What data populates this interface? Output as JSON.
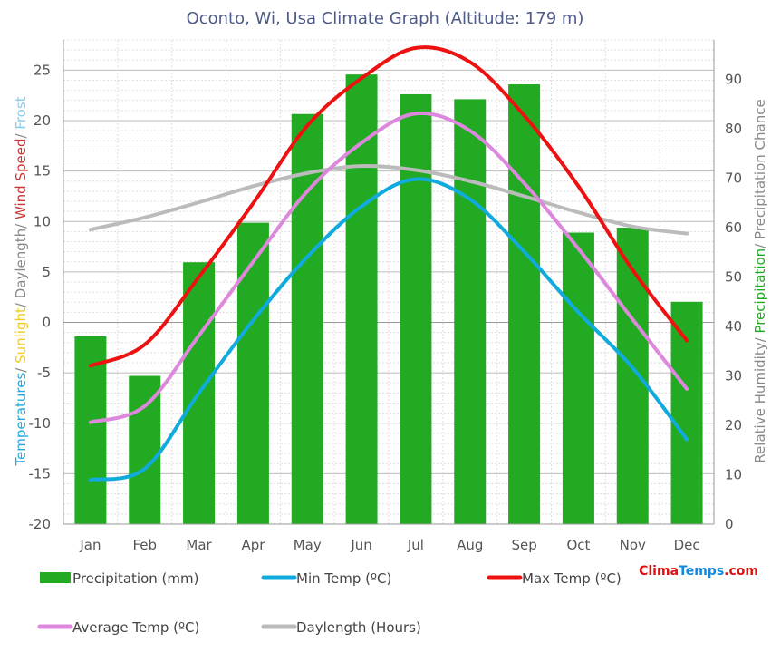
{
  "chart_data": {
    "type": "bar",
    "title": "Oconto, Wi, Usa Climate Graph (Altitude: 179 m)",
    "categories": [
      "Jan",
      "Feb",
      "Mar",
      "Apr",
      "May",
      "Jun",
      "Jul",
      "Aug",
      "Sep",
      "Oct",
      "Nov",
      "Dec"
    ],
    "left_axis": {
      "ylim": [
        -20,
        28
      ],
      "ticks": [
        -20,
        -15,
        -10,
        -5,
        0,
        5,
        10,
        15,
        20,
        25
      ],
      "label_parts": [
        {
          "text": "Temperatures",
          "color": "#22aadd"
        },
        {
          "text": "/ ",
          "color": "#888888"
        },
        {
          "text": "Sunlight",
          "color": "#eecc22"
        },
        {
          "text": "/ ",
          "color": "#888888"
        },
        {
          "text": "Daylength",
          "color": "#888888"
        },
        {
          "text": "/ ",
          "color": "#888888"
        },
        {
          "text": "Wind Speed",
          "color": "#cc3333"
        },
        {
          "text": "/ ",
          "color": "#888888"
        },
        {
          "text": "Frost",
          "color": "#88ccee"
        }
      ]
    },
    "right_axis": {
      "ylim": [
        0,
        98
      ],
      "ticks": [
        0,
        10,
        20,
        30,
        40,
        50,
        60,
        70,
        80,
        90
      ],
      "label_parts": [
        {
          "text": "Relative Humidity",
          "color": "#888888"
        },
        {
          "text": "/ ",
          "color": "#888888"
        },
        {
          "text": "Precipitation",
          "color": "#22aa22"
        },
        {
          "text": "/ ",
          "color": "#888888"
        },
        {
          "text": "Precipitation Chance",
          "color": "#888888"
        }
      ]
    },
    "series": [
      {
        "name": "Precipitation (mm)",
        "type": "bar",
        "axis": "right",
        "color": "#22aa22",
        "values": [
          38,
          30,
          53,
          61,
          83,
          91,
          87,
          86,
          89,
          59,
          60,
          45
        ]
      },
      {
        "name": "Min Temp (ºC)",
        "type": "line",
        "axis": "left",
        "color": "#11aadd",
        "values": [
          -15.6,
          -14.5,
          -7.0,
          0.2,
          6.5,
          11.5,
          14.2,
          12.2,
          7.0,
          1.0,
          -4.5,
          -11.6
        ]
      },
      {
        "name": "Max Temp (ºC)",
        "type": "line",
        "axis": "left",
        "color": "#ee1111",
        "values": [
          -4.3,
          -2.2,
          4.5,
          11.8,
          19.5,
          24.2,
          27.2,
          25.8,
          20.5,
          13.5,
          5.2,
          -1.8
        ]
      },
      {
        "name": "Average Temp (ºC)",
        "type": "line",
        "axis": "left",
        "color": "#dd88dd",
        "values": [
          -9.9,
          -8.3,
          -1.3,
          6.0,
          13.0,
          17.8,
          20.7,
          19.0,
          13.8,
          7.3,
          0.3,
          -6.6
        ]
      },
      {
        "name": "Daylength (Hours)",
        "type": "line",
        "axis": "left",
        "color": "#bbbbbb",
        "values": [
          9.2,
          10.4,
          11.9,
          13.5,
          14.8,
          15.5,
          15.1,
          14.0,
          12.5,
          10.9,
          9.5,
          8.8
        ]
      }
    ],
    "grid": true,
    "legend": "bottom"
  },
  "brand": {
    "part1": "Clima",
    "part2": "Temps",
    "part3": ".com"
  }
}
